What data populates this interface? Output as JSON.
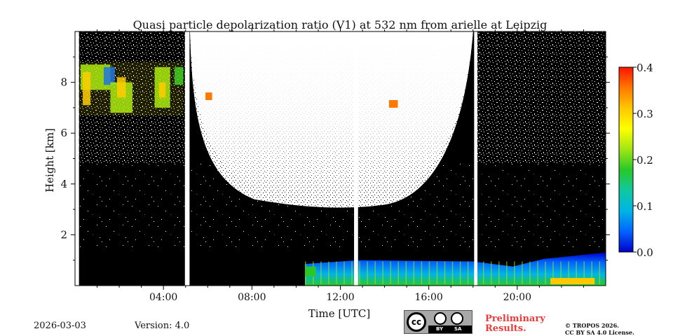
{
  "chart_data": {
    "type": "heatmap",
    "title": "Quasi particle depolarization ratio (V1) at 532 nm from arielle at Leipzig",
    "xlabel": "Time [UTC]",
    "ylabel": "Height [km]",
    "xlim_hours": [
      0,
      24
    ],
    "ylim_km": [
      0,
      10
    ],
    "x_ticks": [
      {
        "value": 4,
        "label": "04:00"
      },
      {
        "value": 8,
        "label": "08:00"
      },
      {
        "value": 12,
        "label": "12:00"
      },
      {
        "value": 16,
        "label": "16:00"
      },
      {
        "value": 20,
        "label": "20:00"
      }
    ],
    "y_ticks": [
      {
        "value": 2,
        "label": "2"
      },
      {
        "value": 4,
        "label": "4"
      },
      {
        "value": 6,
        "label": "6"
      },
      {
        "value": 8,
        "label": "8"
      }
    ],
    "colorbar": {
      "min": 0.0,
      "max": 0.4,
      "ticks": [
        {
          "value": 0.0,
          "label": "0.0"
        },
        {
          "value": 0.1,
          "label": "0.1"
        },
        {
          "value": 0.2,
          "label": "0.2"
        },
        {
          "value": 0.3,
          "label": "0.3"
        },
        {
          "value": 0.4,
          "label": "0.4"
        }
      ],
      "colors": [
        "#0000c8",
        "#0064ff",
        "#00b4e6",
        "#10c8a0",
        "#28c828",
        "#a0e614",
        "#ffff00",
        "#ffc800",
        "#ff7800",
        "#ff1400"
      ]
    },
    "data_gaps_hours": [
      [
        0.0,
        0.18
      ],
      [
        4.97,
        5.18
      ],
      [
        12.62,
        12.8
      ],
      [
        18.05,
        18.2
      ]
    ],
    "background_noise_region": {
      "hours": [
        5.2,
        18.0
      ],
      "min_height_km": 3.0,
      "description": "daylight noise shown as white"
    },
    "features": [
      {
        "name": "cirrus",
        "hours": [
          0.2,
          4.9
        ],
        "height_km": [
          6.7,
          8.8
        ],
        "depolarization": 0.28
      },
      {
        "name": "boundary layer aerosol",
        "hours": [
          10.4,
          24.0
        ],
        "height_km": [
          0.0,
          1.3
        ],
        "depolarization": 0.1
      },
      {
        "name": "aerosol patch",
        "hours": [
          5.9,
          6.2
        ],
        "height_km": [
          7.3,
          7.6
        ],
        "depolarization": 0.35
      },
      {
        "name": "aerosol patch",
        "hours": [
          14.2,
          14.6
        ],
        "height_km": [
          7.0,
          7.3
        ],
        "depolarization": 0.36
      }
    ]
  },
  "footer": {
    "date": "2026-03-03",
    "version": "Version: 4.0",
    "license_badge": {
      "cc": "cc",
      "by": "BY",
      "sa": "SA"
    },
    "preliminary_line1": "Preliminary",
    "preliminary_line2": "Results.",
    "copyright_line1": "© TROPOS 2026.",
    "copyright_line2": "CC BY SA 4.0 License."
  }
}
